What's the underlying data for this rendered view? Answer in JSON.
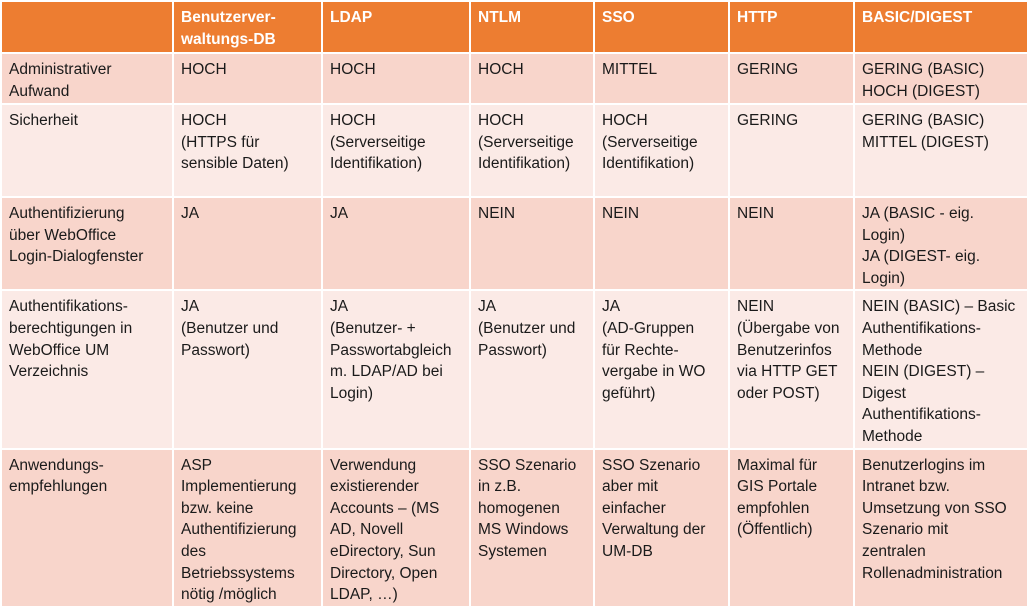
{
  "colors": {
    "header": "#ED7D31",
    "row_dark": "#F8D5CB",
    "row_light": "#FBEAE6"
  },
  "table": {
    "headers": [
      "",
      "Benutzerver-\nwaltungs-DB",
      "LDAP",
      "NTLM",
      "SSO",
      "HTTP",
      "BASIC/DIGEST"
    ],
    "rows": [
      {
        "label": "Administrativer\nAufwand",
        "cells": [
          "HOCH",
          "HOCH",
          "HOCH",
          "MITTEL",
          "GERING",
          "GERING (BASIC)\nHOCH (DIGEST)"
        ]
      },
      {
        "label": "Sicherheit",
        "cells": [
          "HOCH\n(HTTPS für\nsensible Daten)",
          "HOCH\n(Serverseitige\nIdentifikation)",
          "HOCH\n(Serverseitige\nIdentifikation)",
          "HOCH\n(Serverseitige\nIdentifikation)",
          "GERING",
          "GERING (BASIC)\nMITTEL (DIGEST)"
        ]
      },
      {
        "label": "Authentifizierung\nüber WebOffice\nLogin-Dialogfenster",
        "cells": [
          "JA",
          "JA",
          "NEIN",
          "NEIN",
          "NEIN",
          "JA (BASIC - eig. Login)\nJA (DIGEST- eig.\nLogin)"
        ]
      },
      {
        "label": "Authentifikations-\nberechtigungen in\nWebOffice UM\nVerzeichnis",
        "cells": [
          "JA\n(Benutzer und\nPasswort)",
          "JA\n(Benutzer- +\nPasswortabgleich\nm. LDAP/AD bei\nLogin)",
          "JA\n(Benutzer und\nPasswort)",
          "JA\n(AD-Gruppen\nfür Rechte-\nvergabe in WO\ngeführt)",
          "NEIN\n(Übergabe von\nBenutzerinfos\nvia HTTP GET\noder POST)",
          "NEIN (BASIC) – Basic\nAuthentifikations-\nMethode\nNEIN (DIGEST) –\nDigest\nAuthentifikations-\nMethode"
        ]
      },
      {
        "label": "Anwendungs-\nempfehlungen",
        "cells": [
          "ASP\nImplementierung\nbzw. keine\nAuthentifizierung\ndes\nBetriebssystems\nnötig /möglich",
          "Verwendung\nexistierender\nAccounts – (MS\nAD, Novell\neDirectory, Sun\nDirectory, Open\nLDAP, …)",
          "SSO Szenario\nin z.B.\nhomogenen\nMS Windows\nSystemen",
          "SSO Szenario\naber mit\neinfacher\nVerwaltung der\nUM-DB",
          "Maximal für\nGIS Portale\nempfohlen\n(Öffentlich)",
          "Benutzerlogins im\nIntranet bzw.\nUmsetzung von SSO\nSzenario mit\nzentralen\nRollenadministration"
        ]
      }
    ]
  }
}
